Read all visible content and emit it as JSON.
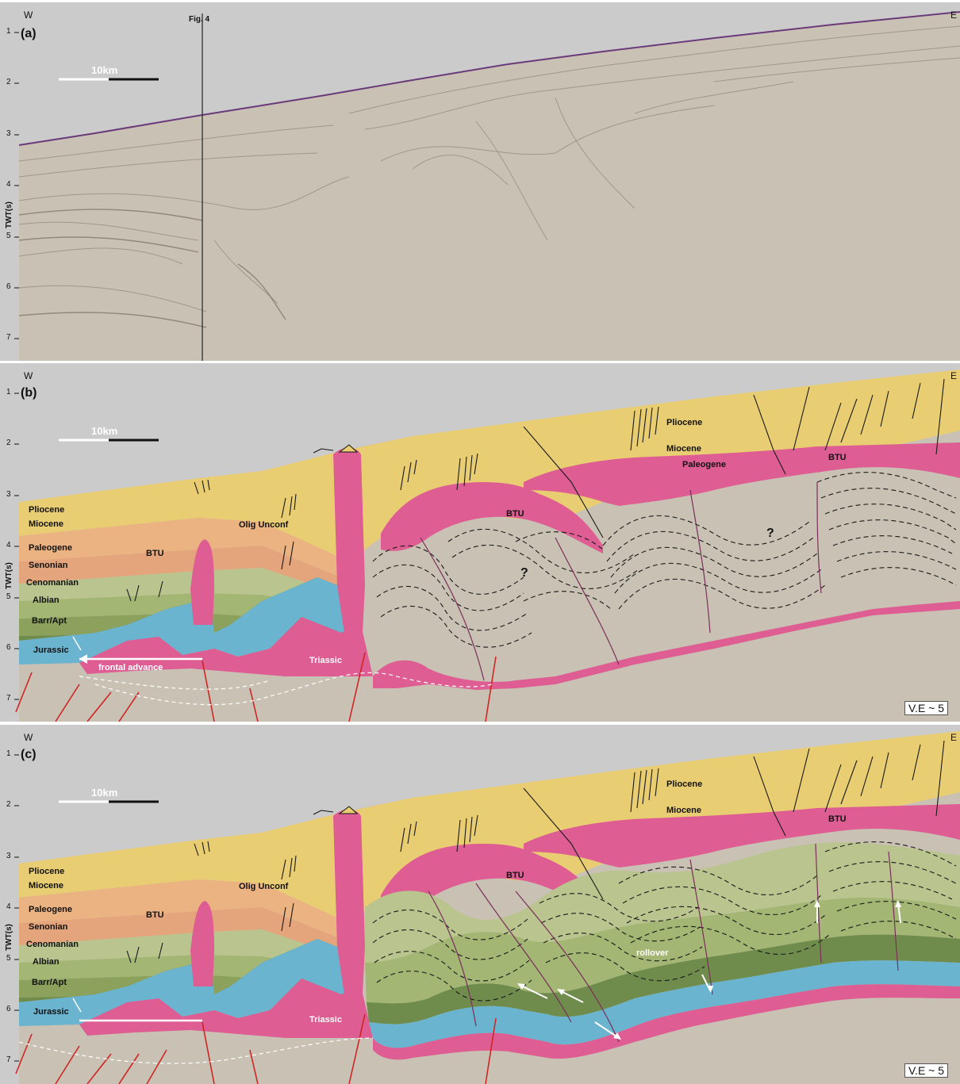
{
  "panels": [
    {
      "letter": "(a)",
      "west": "W",
      "east": "E",
      "yticks": [
        "1",
        "2",
        "3",
        "4",
        "5",
        "6",
        "7"
      ],
      "axis_label": "TWT(s)",
      "scale_label": "10km",
      "fig_label": "Fig. 4"
    },
    {
      "letter": "(b)",
      "west": "W",
      "east": "E",
      "yticks": [
        "1",
        "2",
        "3",
        "4",
        "5",
        "6",
        "7"
      ],
      "axis_label": "TWT(s)",
      "scale_label": "10km",
      "ve_label": "V.E ~ 5",
      "legend": [
        "Pliocene",
        "Miocene",
        "Paleogene",
        "Senonian",
        "Cenomanian",
        "Albian",
        "Barr/Apt",
        "Jurassic"
      ],
      "annotations": {
        "btu_left": "BTU",
        "olig_unconf": "Olig Unconf",
        "btu_mid": "BTU",
        "btu_right": "BTU",
        "pliocene_right": "Pliocene",
        "miocene_right": "Miocene",
        "paleogene_right": "Paleogene",
        "question_1": "?",
        "question_2": "?",
        "triassic": "Triassic",
        "frontal_advance": "frontal advance"
      }
    },
    {
      "letter": "(c)",
      "west": "W",
      "east": "E",
      "yticks": [
        "1",
        "2",
        "3",
        "4",
        "5",
        "6",
        "7"
      ],
      "axis_label": "TWT(s)",
      "scale_label": "10km",
      "ve_label": "V.E ~ 5",
      "legend": [
        "Pliocene",
        "Miocene",
        "Paleogene",
        "Senonian",
        "Cenomanian",
        "Albian",
        "Barr/Apt",
        "Jurassic"
      ],
      "annotations": {
        "btu_left": "BTU",
        "olig_unconf": "Olig Unconf",
        "btu_mid": "BTU",
        "btu_right": "BTU",
        "pliocene_right": "Pliocene",
        "miocene_right": "Miocene",
        "rollover": "rollover",
        "triassic": "Triassic"
      }
    }
  ],
  "colors": {
    "sky": "#cbcbcb",
    "seismic": "#c9c2b4",
    "pliocene": "#e9cd73",
    "miocene": "#ebb381",
    "paleogene": "#e5a57c",
    "senonian": "#b9c48e",
    "cenomanian": "#a3b673",
    "albian": "#8ba15c",
    "barr_apt": "#6f8c4c",
    "jurassic": "#6ab4cf",
    "salt": "#de5d92",
    "fault": "#d02525",
    "seafloor": "#6a3a7a"
  }
}
